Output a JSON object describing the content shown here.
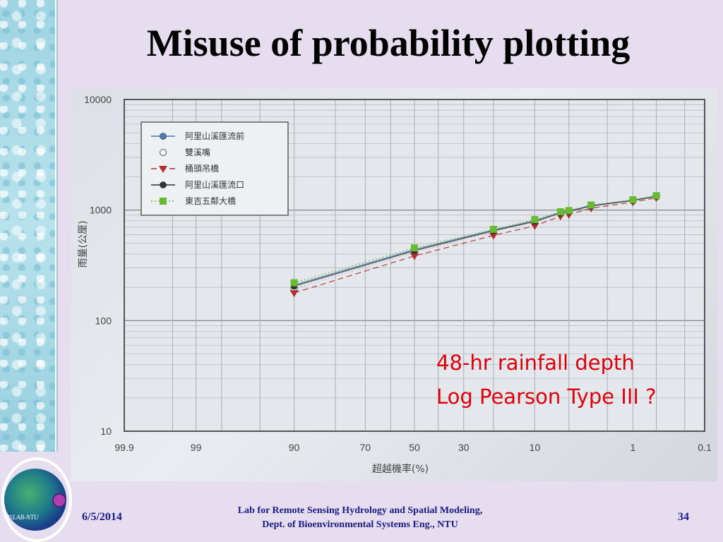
{
  "slide": {
    "title": "Misuse of probability plotting",
    "annotation_line1": "48-hr rainfall depth",
    "annotation_line2": "Log Pearson Type III ?",
    "footer_date": "6/5/2014",
    "footer_lab_line1": "Lab for Remote Sensing Hydrology and Spatial Modeling,",
    "footer_lab_line2": "Dept. of Bioenvironmental Systems Eng., NTU",
    "page_number": "34",
    "logo_text": "RSLAB-NTU"
  },
  "chart_data": {
    "type": "line",
    "xlabel": "超越機率(%)",
    "ylabel": "雨量(公厘)",
    "y_scale": "log",
    "ylim": [
      10,
      10000
    ],
    "y_ticks": [
      "10",
      "100",
      "1000",
      "10000"
    ],
    "x_scale": "normal-probability",
    "x_direction": "descending",
    "x_ticks": [
      "99.9",
      "99",
      "90",
      "70",
      "50",
      "30",
      "10",
      "1",
      "0.1"
    ],
    "grid": true,
    "legend_position": "top-left",
    "x": [
      90,
      50,
      20,
      10,
      6,
      5,
      3,
      1,
      0.5
    ],
    "series": [
      {
        "name": "阿里山溪匯流前",
        "marker": "filled-circle",
        "color": "#4a78b8",
        "line": "solid",
        "values": [
          210,
          440,
          660,
          800,
          950,
          980,
          1100,
          1230,
          1340
        ]
      },
      {
        "name": "雙溪嘴",
        "marker": "open-circle",
        "color": "#777777",
        "line": "none",
        "values": [
          195,
          415,
          640,
          780,
          930,
          960,
          1080,
          1210,
          1320
        ]
      },
      {
        "name": "桶頭吊橋",
        "marker": "triangle-down",
        "color": "#b03030",
        "line": "dashed",
        "values": [
          178,
          385,
          590,
          720,
          880,
          910,
          1040,
          1180,
          1290
        ]
      },
      {
        "name": "阿里山溪匯流口",
        "marker": "filled-circle",
        "color": "#333333",
        "line": "solid",
        "values": [
          205,
          430,
          650,
          790,
          940,
          970,
          1090,
          1220,
          1330
        ]
      },
      {
        "name": "東吉五鄰大橋",
        "marker": "square",
        "color": "#66bb33",
        "line": "dotted",
        "values": [
          220,
          455,
          670,
          820,
          965,
          990,
          1110,
          1240,
          1350
        ]
      }
    ]
  }
}
